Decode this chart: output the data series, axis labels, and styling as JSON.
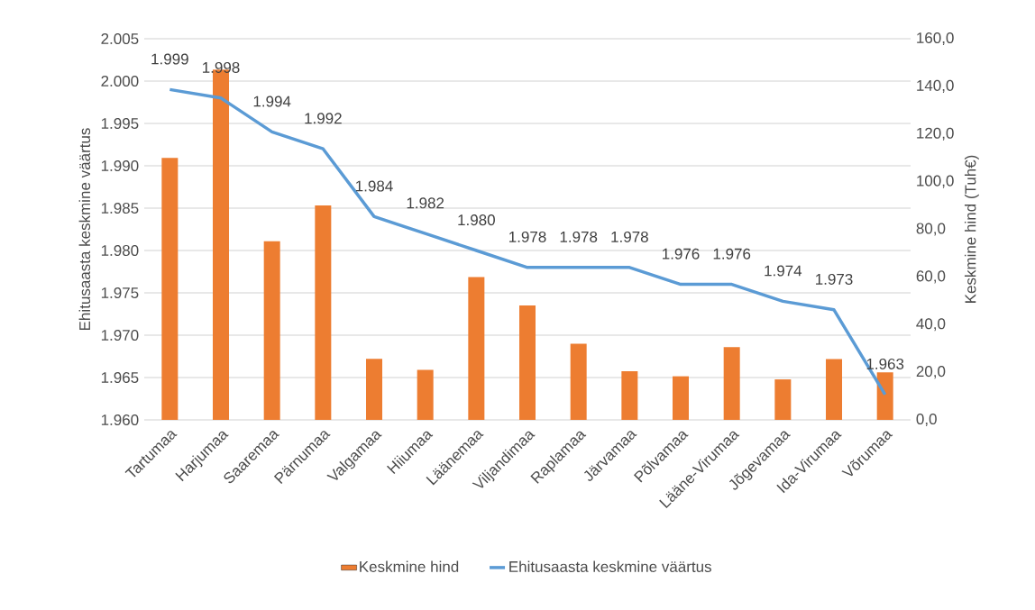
{
  "chart_data": {
    "type": "bar",
    "categories": [
      "Tartumaa",
      "Harjumaa",
      "Saaremaa",
      "Pärnumaa",
      "Valgamaa",
      "Hiiumaa",
      "Läänemaa",
      "Viljandimaa",
      "Raplamaa",
      "Järvamaa",
      "Põlvamaa",
      "Lääne-Virumaa",
      "Jõgevamaa",
      "Ida-Virumaa",
      "Võrumaa"
    ],
    "series": [
      {
        "name": "Keskmine hind",
        "axis": "y2",
        "color": "#ed7d31",
        "values": [
          110,
          147,
          75,
          90,
          25.6,
          21,
          60,
          48,
          32,
          20.4,
          18.3,
          30.5,
          17,
          25.5,
          20
        ]
      },
      {
        "name": "Ehitusaasta keskmine väärtus",
        "type": "line",
        "axis": "y",
        "color": "#5b9bd5",
        "values": [
          1999,
          1998,
          1994,
          1992,
          1984,
          1982,
          1980,
          1978,
          1978,
          1978,
          1976,
          1976,
          1974,
          1973,
          1963
        ],
        "value_labels": [
          "1.999",
          "1.998",
          "1.994",
          "1.992",
          "1.984",
          "1.982",
          "1.980",
          "1.978",
          "1.978",
          "1.978",
          "1.976",
          "1.976",
          "1.974",
          "1.973",
          "1.963"
        ]
      }
    ],
    "ylabel": "Ehitusaasta keskmine väärtus",
    "y2label": "Keskmine hind (Tuh€)",
    "ylim": [
      1960,
      2005
    ],
    "yticks": [
      {
        "value": 1960,
        "label": "1.960"
      },
      {
        "value": 1965,
        "label": "1.965"
      },
      {
        "value": 1970,
        "label": "1.970"
      },
      {
        "value": 1975,
        "label": "1.975"
      },
      {
        "value": 1980,
        "label": "1.980"
      },
      {
        "value": 1985,
        "label": "1.985"
      },
      {
        "value": 1990,
        "label": "1.990"
      },
      {
        "value": 1995,
        "label": "1.995"
      },
      {
        "value": 2000,
        "label": "2.000"
      },
      {
        "value": 2005,
        "label": "2.005"
      }
    ],
    "y2lim": [
      0,
      160
    ],
    "y2ticks": [
      {
        "value": 0,
        "label": "0,0"
      },
      {
        "value": 20,
        "label": "20,0"
      },
      {
        "value": 40,
        "label": "40,0"
      },
      {
        "value": 60,
        "label": "60,0"
      },
      {
        "value": 80,
        "label": "80,0"
      },
      {
        "value": 100,
        "label": "100,0"
      },
      {
        "value": 120,
        "label": "120,0"
      },
      {
        "value": 140,
        "label": "140,0"
      },
      {
        "value": 160,
        "label": "160,0"
      }
    ],
    "grid": "y",
    "legend": "bottom",
    "marker": "none"
  }
}
